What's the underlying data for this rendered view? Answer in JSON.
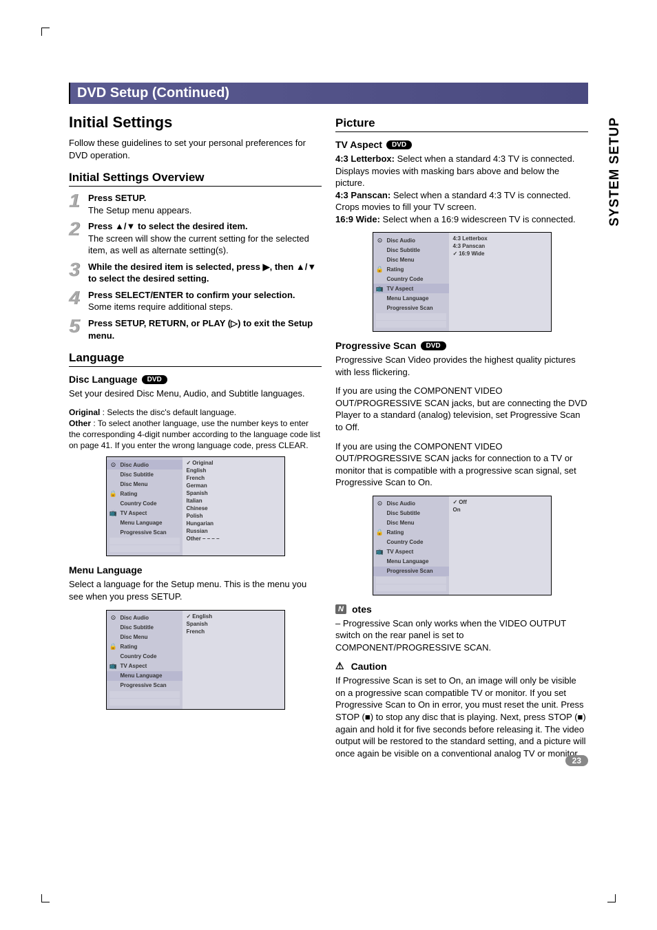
{
  "page": {
    "title_bar": "DVD Setup (Continued)",
    "side_tab": "SYSTEM SETUP",
    "page_number": "23"
  },
  "left": {
    "h1": "Initial Settings",
    "intro": "Follow these guidelines to set your personal preferences for DVD operation.",
    "overview_h": "Initial Settings Overview",
    "steps": [
      {
        "n": "1",
        "bold": "Press SETUP.",
        "rest": "The Setup menu appears."
      },
      {
        "n": "2",
        "bold": "Press ▲/▼ to select the desired item.",
        "rest": "The screen will show the current setting for the selected item, as well as alternate setting(s)."
      },
      {
        "n": "3",
        "bold": "While the desired item is selected, press ▶, then ▲/▼ to select the desired setting.",
        "rest": ""
      },
      {
        "n": "4",
        "bold": "Press SELECT/ENTER to confirm your selection.",
        "rest": "Some items require additional steps."
      },
      {
        "n": "5",
        "bold": "Press SETUP, RETURN, or PLAY (▷) to exit the Setup menu.",
        "rest": ""
      }
    ],
    "language_h": "Language",
    "disc_lang_h": "Disc Language",
    "disc_lang_pill": "DVD",
    "disc_lang_body1": "Set your desired Disc Menu, Audio, and Subtitle languages.",
    "disc_lang_body2_b": "Original",
    "disc_lang_body2": " : Selects the disc's default language.",
    "disc_lang_body3_b": "Other",
    "disc_lang_body3": " : To select another language, use the number keys to enter the corresponding 4-digit number according to the language code list on page 41. If you enter the wrong language code, press CLEAR.",
    "menu_lang_h": "Menu Language",
    "menu_lang_body": "Select a language for the Setup menu. This is the menu you see when you press SETUP."
  },
  "right": {
    "picture_h": "Picture",
    "tv_aspect_h": "TV Aspect",
    "tv_aspect_pill": "DVD",
    "tv_a1_b": "4:3 Letterbox:",
    "tv_a1": " Select when a standard 4:3 TV is connected. Displays movies with masking bars above and below the picture.",
    "tv_a2_b": "4:3 Panscan:",
    "tv_a2": " Select when a standard 4:3 TV is connected. Crops movies to fill your TV screen.",
    "tv_a3_b": "16:9 Wide:",
    "tv_a3": " Select when a 16:9 widescreen TV is connected.",
    "prog_h": "Progressive Scan",
    "prog_pill": "DVD",
    "prog_body1": "Progressive Scan Video provides the highest quality pictures with less flickering.",
    "prog_body2": "If you are using the COMPONENT VIDEO OUT/PROGRESSIVE SCAN jacks, but are connecting the DVD Player to a standard (analog) television, set Progressive Scan to Off.",
    "prog_body3": "If you are using the COMPONENT VIDEO OUT/PROGRESSIVE SCAN jacks for connection to a TV or monitor that is compatible with a progressive scan signal, set Progressive Scan to On.",
    "notes_label": "otes",
    "notes_body": "Progressive Scan only works when the VIDEO OUTPUT switch on the rear panel is set to COMPONENT/PROGRESSIVE SCAN.",
    "caution_label": "Caution",
    "caution_body": "If Progressive Scan is set to On, an image will only be visible on a progressive scan compatible TV or monitor. If you set Progressive Scan to On in error, you must reset the unit. Press STOP (■) to stop any disc that is playing. Next, press STOP (■) again and hold it for five seconds before releasing it. The video output will be restored to the standard setting, and a picture will once again be visible on a conventional analog TV or monitor."
  },
  "osd_common": {
    "items": [
      "Disc Audio",
      "Disc Subtitle",
      "Disc Menu",
      "Rating",
      "Country Code",
      "TV Aspect",
      "Menu Language",
      "Progressive Scan"
    ],
    "icons": [
      "⊙",
      "🔒",
      "📺"
    ]
  },
  "osd1": {
    "options": [
      "✓Original",
      "English",
      "French",
      "German",
      "Spanish",
      "Italian",
      "Chinese",
      "Polish",
      "Hungarian",
      "Russian",
      "Other  – – – –"
    ],
    "highlight": 0
  },
  "osd2": {
    "options": [
      "✓English",
      "Spanish",
      "French"
    ],
    "highlight": 6
  },
  "osd3": {
    "options": [
      "4:3 Letterbox",
      "4:3 Panscan",
      "✓16:9 Wide"
    ],
    "highlight": 5
  },
  "osd4": {
    "options": [
      "✓Off",
      "On"
    ],
    "highlight": 7
  }
}
